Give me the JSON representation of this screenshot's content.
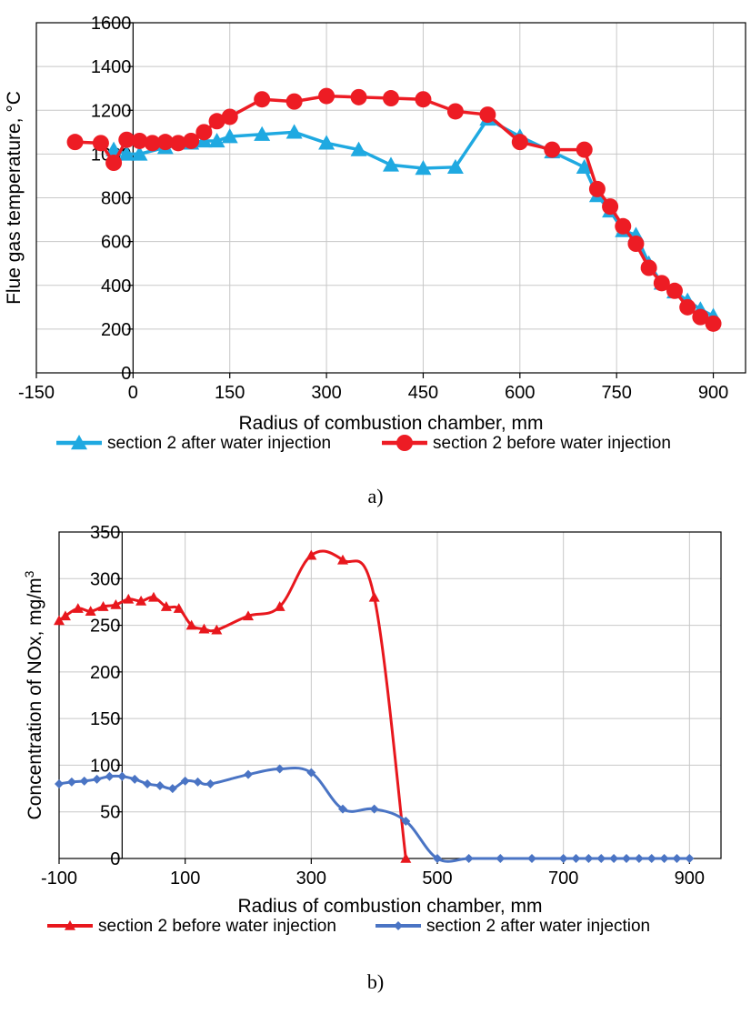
{
  "chart_data": [
    {
      "type": "line",
      "xlabel": "Radius of combustion chamber, mm",
      "ylabel": "Flue gas temperature, °C",
      "xlim": [
        -150,
        950
      ],
      "ylim": [
        0,
        1600
      ],
      "xticks": [
        -150,
        0,
        150,
        300,
        450,
        600,
        750,
        900
      ],
      "yticks": [
        0,
        200,
        400,
        600,
        800,
        1000,
        1200,
        1400,
        1600
      ],
      "grid": true,
      "legend_position": "bottom",
      "caption": "a)",
      "series": [
        {
          "name": "section 2 after water injection",
          "color": "#1fa9e1",
          "marker": "triangle",
          "x": [
            -30,
            -10,
            10,
            50,
            90,
            110,
            130,
            150,
            200,
            250,
            300,
            350,
            400,
            450,
            500,
            550,
            600,
            650,
            700,
            720,
            740,
            760,
            780,
            800,
            820,
            840,
            860,
            880,
            900
          ],
          "y": [
            1020,
            1000,
            1000,
            1030,
            1050,
            1060,
            1060,
            1080,
            1090,
            1100,
            1050,
            1020,
            950,
            935,
            940,
            1160,
            1080,
            1010,
            940,
            810,
            740,
            650,
            630,
            500,
            410,
            370,
            330,
            290,
            260
          ]
        },
        {
          "name": "section 2 before water injection",
          "color": "#ed1c24",
          "marker": "circle",
          "x": [
            -90,
            -50,
            -30,
            -10,
            10,
            30,
            50,
            70,
            90,
            110,
            130,
            150,
            200,
            250,
            300,
            350,
            400,
            450,
            500,
            550,
            600,
            650,
            700,
            720,
            740,
            760,
            780,
            800,
            820,
            840,
            860,
            880,
            900
          ],
          "y": [
            1055,
            1050,
            960,
            1065,
            1060,
            1050,
            1055,
            1050,
            1060,
            1100,
            1150,
            1170,
            1250,
            1240,
            1265,
            1260,
            1255,
            1250,
            1195,
            1180,
            1055,
            1020,
            1020,
            840,
            760,
            670,
            590,
            480,
            410,
            375,
            300,
            255,
            225
          ]
        }
      ]
    },
    {
      "type": "line",
      "xlabel": "Radius of combustion chamber, mm",
      "ylabel_prefix": "Concentration of NOx, mg/m",
      "ylabel_sup": "3",
      "xlim": [
        -100,
        950
      ],
      "ylim": [
        0,
        350
      ],
      "xticks": [
        -100,
        100,
        300,
        500,
        700,
        900
      ],
      "yticks": [
        0,
        50,
        100,
        150,
        200,
        250,
        300,
        350
      ],
      "grid": true,
      "legend_position": "bottom",
      "caption": "b)",
      "series": [
        {
          "name": "section 2 before water injection",
          "color": "#e8171d",
          "marker": "triangle",
          "x": [
            -100,
            -90,
            -70,
            -50,
            -30,
            -10,
            10,
            30,
            50,
            70,
            90,
            110,
            130,
            150,
            200,
            250,
            300,
            350,
            400,
            450
          ],
          "y": [
            255,
            260,
            268,
            265,
            270,
            272,
            278,
            276,
            280,
            270,
            268,
            250,
            246,
            245,
            260,
            270,
            325,
            320,
            280,
            0
          ]
        },
        {
          "name": "section 2 after water injection",
          "color": "#4a74c4",
          "marker": "diamond",
          "x": [
            -100,
            -80,
            -60,
            -40,
            -20,
            0,
            20,
            40,
            60,
            80,
            100,
            120,
            140,
            200,
            250,
            300,
            350,
            400,
            450,
            500,
            550,
            600,
            650,
            700,
            720,
            740,
            760,
            780,
            800,
            820,
            840,
            860,
            880,
            900
          ],
          "y": [
            80,
            82,
            83,
            85,
            88,
            88,
            85,
            80,
            78,
            75,
            83,
            82,
            80,
            90,
            96,
            92,
            53,
            53,
            40,
            0,
            0,
            0,
            0,
            0,
            0,
            0,
            0,
            0,
            0,
            0,
            0,
            0,
            0,
            0
          ]
        }
      ]
    }
  ]
}
